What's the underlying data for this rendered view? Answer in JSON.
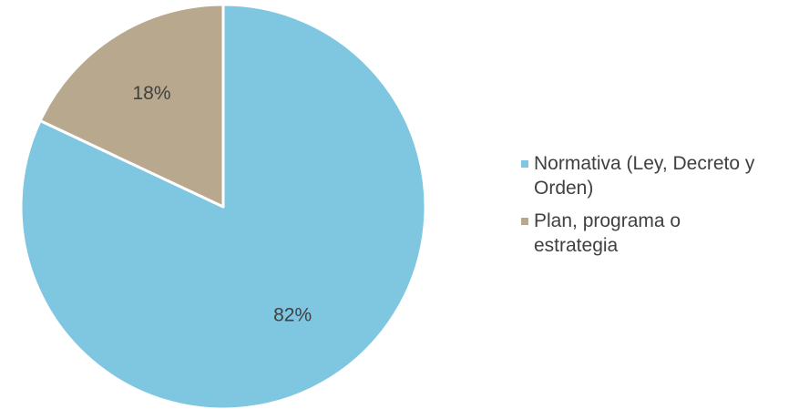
{
  "chart_data": {
    "type": "pie",
    "categories": [
      "Normativa (Ley, Decreto y Orden)",
      "Plan, programa o estrategia"
    ],
    "values": [
      82,
      18
    ],
    "data_labels": [
      "82%",
      "18%"
    ],
    "colors": [
      "#7FC6E0",
      "#B8A98E"
    ],
    "title": "",
    "legend_position": "right",
    "legend": [
      {
        "line1": "Normativa (Ley, Decreto y",
        "line2": "Orden)"
      },
      {
        "line1": "Plan, programa o",
        "line2": "estrategia"
      }
    ]
  }
}
